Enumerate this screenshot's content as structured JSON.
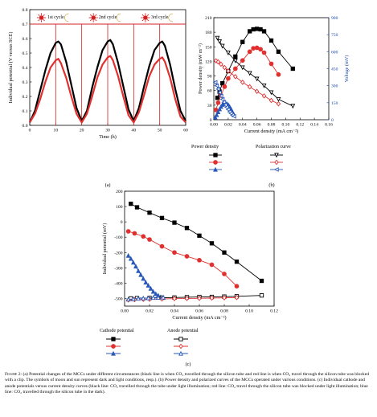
{
  "panels": {
    "a": {
      "label": "(a)",
      "chart_data": {
        "type": "line",
        "xlabel": "Time (h)",
        "ylabel": "Individual potential (V versus SCE)",
        "xlim": [
          0,
          60
        ],
        "ylim": [
          0,
          0.8
        ],
        "xticks": [
          0,
          10,
          20,
          30,
          40,
          50,
          60
        ],
        "yticks": [
          0.0,
          0.1,
          0.2,
          0.3,
          0.4,
          0.5,
          0.6,
          0.7,
          0.8
        ],
        "cycle_labels": [
          "1st cycle",
          "2nd cycle",
          "3rd cycle"
        ],
        "reference_line_y": 0.7,
        "series": [
          {
            "color": "#000000",
            "x": [
              0,
              2,
              4,
              6,
              8,
              10,
              11,
              12,
              14,
              16,
              18,
              20,
              22,
              24,
              26,
              28,
              30,
              31,
              32,
              34,
              36,
              38,
              40,
              42,
              44,
              46,
              48,
              50,
              51,
              52,
              54,
              56,
              58,
              60
            ],
            "y": [
              0.02,
              0.1,
              0.24,
              0.38,
              0.5,
              0.57,
              0.58,
              0.56,
              0.44,
              0.28,
              0.12,
              0.03,
              0.1,
              0.26,
              0.4,
              0.52,
              0.58,
              0.59,
              0.56,
              0.43,
              0.27,
              0.11,
              0.03,
              0.12,
              0.27,
              0.41,
              0.52,
              0.57,
              0.58,
              0.55,
              0.42,
              0.25,
              0.1,
              0.03
            ]
          },
          {
            "color": "#e03030",
            "x": [
              0,
              2,
              4,
              6,
              8,
              10,
              11,
              12,
              14,
              16,
              18,
              20,
              22,
              24,
              26,
              28,
              30,
              31,
              32,
              34,
              36,
              38,
              40,
              42,
              44,
              46,
              48,
              50,
              51,
              52,
              54,
              56,
              58,
              60
            ],
            "y": [
              0.02,
              0.08,
              0.18,
              0.3,
              0.4,
              0.45,
              0.46,
              0.43,
              0.33,
              0.2,
              0.08,
              0.02,
              0.08,
              0.2,
              0.33,
              0.42,
              0.47,
              0.48,
              0.45,
              0.34,
              0.2,
              0.07,
              0.02,
              0.09,
              0.21,
              0.34,
              0.42,
              0.46,
              0.47,
              0.44,
              0.33,
              0.18,
              0.06,
              0.02
            ]
          }
        ]
      }
    },
    "b": {
      "label": "(b)",
      "chart_data": {
        "type": "line",
        "xlabel": "Current density (mA cm⁻²)",
        "ylabel_left": "Power density (mW m⁻²)",
        "ylabel_right": "Voltage (mV)",
        "xlim": [
          0,
          0.16
        ],
        "ylim_left": [
          0,
          210
        ],
        "ylim_right": [
          0,
          900
        ],
        "xticks": [
          0.0,
          0.02,
          0.04,
          0.06,
          0.08,
          0.1,
          0.12,
          0.14,
          0.16
        ],
        "yticks_left": [
          0,
          30,
          60,
          90,
          120,
          150,
          180,
          210
        ],
        "yticks_right": [
          0,
          150,
          300,
          450,
          600,
          750,
          900
        ],
        "series": [
          {
            "group": "power",
            "color": "#000000",
            "marker": "square",
            "axis": "left",
            "x": [
              0.005,
              0.008,
              0.012,
              0.02,
              0.03,
              0.04,
              0.05,
              0.055,
              0.06,
              0.065,
              0.07,
              0.08,
              0.09,
              0.11
            ],
            "y": [
              45,
              58,
              75,
              100,
              130,
              160,
              182,
              186,
              187,
              186,
              182,
              163,
              140,
              105
            ]
          },
          {
            "group": "power",
            "color": "#e03030",
            "marker": "circle",
            "axis": "left",
            "x": [
              0.003,
              0.006,
              0.01,
              0.015,
              0.02,
              0.03,
              0.04,
              0.05,
              0.055,
              0.06,
              0.065,
              0.07,
              0.08,
              0.09
            ],
            "y": [
              20,
              35,
              50,
              68,
              85,
              105,
              122,
              140,
              147,
              148,
              145,
              138,
              115,
              93
            ]
          },
          {
            "group": "power",
            "color": "#2858b8",
            "marker": "triangle",
            "axis": "left",
            "x": [
              0.002,
              0.004,
              0.006,
              0.008,
              0.01,
              0.012,
              0.014,
              0.016,
              0.018,
              0.02,
              0.022,
              0.024,
              0.026,
              0.028
            ],
            "y": [
              5,
              10,
              16,
              22,
              27,
              31,
              33,
              34,
              33,
              31,
              27,
              22,
              16,
              10
            ]
          },
          {
            "group": "polarization",
            "color": "#000000",
            "marker": "triangle-down-open",
            "axis": "right",
            "x": [
              0.005,
              0.008,
              0.012,
              0.02,
              0.03,
              0.04,
              0.05,
              0.06,
              0.07,
              0.08,
              0.09,
              0.11
            ],
            "y": [
              720,
              690,
              650,
              590,
              520,
              460,
              410,
              360,
              300,
              240,
              180,
              120
            ]
          },
          {
            "group": "polarization",
            "color": "#e03030",
            "marker": "diamond-open",
            "axis": "right",
            "x": [
              0.003,
              0.006,
              0.01,
              0.015,
              0.02,
              0.03,
              0.04,
              0.05,
              0.06,
              0.07,
              0.08,
              0.09
            ],
            "y": [
              520,
              510,
              490,
              460,
              430,
              380,
              330,
              290,
              250,
              210,
              170,
              140
            ]
          },
          {
            "group": "polarization",
            "color": "#2858b8",
            "marker": "triangle-left-open",
            "axis": "right",
            "x": [
              0.002,
              0.004,
              0.006,
              0.008,
              0.01,
              0.012,
              0.014,
              0.016,
              0.018,
              0.02,
              0.022,
              0.024,
              0.026,
              0.028
            ],
            "y": [
              330,
              300,
              270,
              240,
              210,
              180,
              155,
              130,
              110,
              90,
              70,
              55,
              40,
              30
            ]
          }
        ],
        "legend": {
          "power_title": "Power density",
          "polarization_title": "Polarization curve"
        }
      }
    },
    "c": {
      "label": "(c)",
      "chart_data": {
        "type": "line",
        "xlabel": "Current density (mA cm⁻²)",
        "ylabel": "Individual potential (mV)",
        "xlim": [
          0,
          0.12
        ],
        "ylim": [
          -550,
          200
        ],
        "xticks": [
          0.0,
          0.02,
          0.04,
          0.06,
          0.08,
          0.1,
          0.12
        ],
        "yticks": [
          200,
          100,
          0,
          -100,
          -200,
          -300,
          -400,
          -500
        ],
        "series": [
          {
            "group": "cathode",
            "color": "#000000",
            "marker": "square",
            "x": [
              0.005,
              0.01,
              0.02,
              0.03,
              0.04,
              0.05,
              0.06,
              0.07,
              0.08,
              0.09,
              0.11
            ],
            "y": [
              118,
              95,
              60,
              25,
              -5,
              -40,
              -90,
              -140,
              -200,
              -260,
              -385
            ]
          },
          {
            "group": "cathode",
            "color": "#e03030",
            "marker": "circle",
            "x": [
              0.003,
              0.008,
              0.015,
              0.02,
              0.03,
              0.04,
              0.05,
              0.06,
              0.07,
              0.08,
              0.09
            ],
            "y": [
              -62,
              -75,
              -95,
              -115,
              -160,
              -200,
              -225,
              -250,
              -280,
              -340,
              -420
            ]
          },
          {
            "group": "cathode",
            "color": "#2858b8",
            "marker": "triangle",
            "x": [
              0.003,
              0.005,
              0.007,
              0.009,
              0.011,
              0.013,
              0.015,
              0.017,
              0.019,
              0.021,
              0.023,
              0.025,
              0.027,
              0.029,
              0.031
            ],
            "y": [
              -220,
              -240,
              -265,
              -290,
              -320,
              -345,
              -370,
              -395,
              -415,
              -435,
              -455,
              -470,
              -480,
              -490,
              -495
            ]
          },
          {
            "group": "anode",
            "color": "#000000",
            "marker": "square-open",
            "x": [
              0.005,
              0.01,
              0.02,
              0.03,
              0.04,
              0.05,
              0.06,
              0.07,
              0.08,
              0.09,
              0.11
            ],
            "y": [
              -500,
              -498,
              -497,
              -495,
              -494,
              -492,
              -490,
              -490,
              -488,
              -486,
              -480
            ]
          },
          {
            "group": "anode",
            "color": "#e03030",
            "marker": "diamond-open",
            "x": [
              0.003,
              0.008,
              0.015,
              0.02,
              0.03,
              0.04,
              0.05,
              0.06,
              0.07,
              0.08,
              0.09
            ],
            "y": [
              -510,
              -508,
              -506,
              -505,
              -503,
              -501,
              -500,
              -499,
              -497,
              -496,
              -494
            ]
          },
          {
            "group": "anode",
            "color": "#2858b8",
            "marker": "triangle-open",
            "x": [
              0.003,
              0.007,
              0.011,
              0.015,
              0.019,
              0.023,
              0.027,
              0.031
            ],
            "y": [
              -505,
              -503,
              -500,
              -498,
              -497,
              -495,
              -494,
              -492
            ]
          }
        ],
        "legend": {
          "cathode_title": "Cathode potential",
          "anode_title": "Anode potential"
        }
      }
    }
  },
  "caption": {
    "lead": "Figure 2:",
    "text": " (a) Potential changes of the MCCs under different circumstances (black line is when CO₂ travelled through the silicon tube and red line is when CO₂ travel through the silicon tube was blocked with a clip. The symbols of moon and sun represent dark and light conditions, resp.). (b) Power density and polarized curves of the MCCs operated under various conditions. (c) Individual cathode and anode potentials versus current density curves (black line: CO₂ travelled through the tube under light illumination; red line: CO₂ travel through the silicon tube was blocked under light illumination; blue line: CO₂ travelled through the silicon tube in the dark)."
  }
}
